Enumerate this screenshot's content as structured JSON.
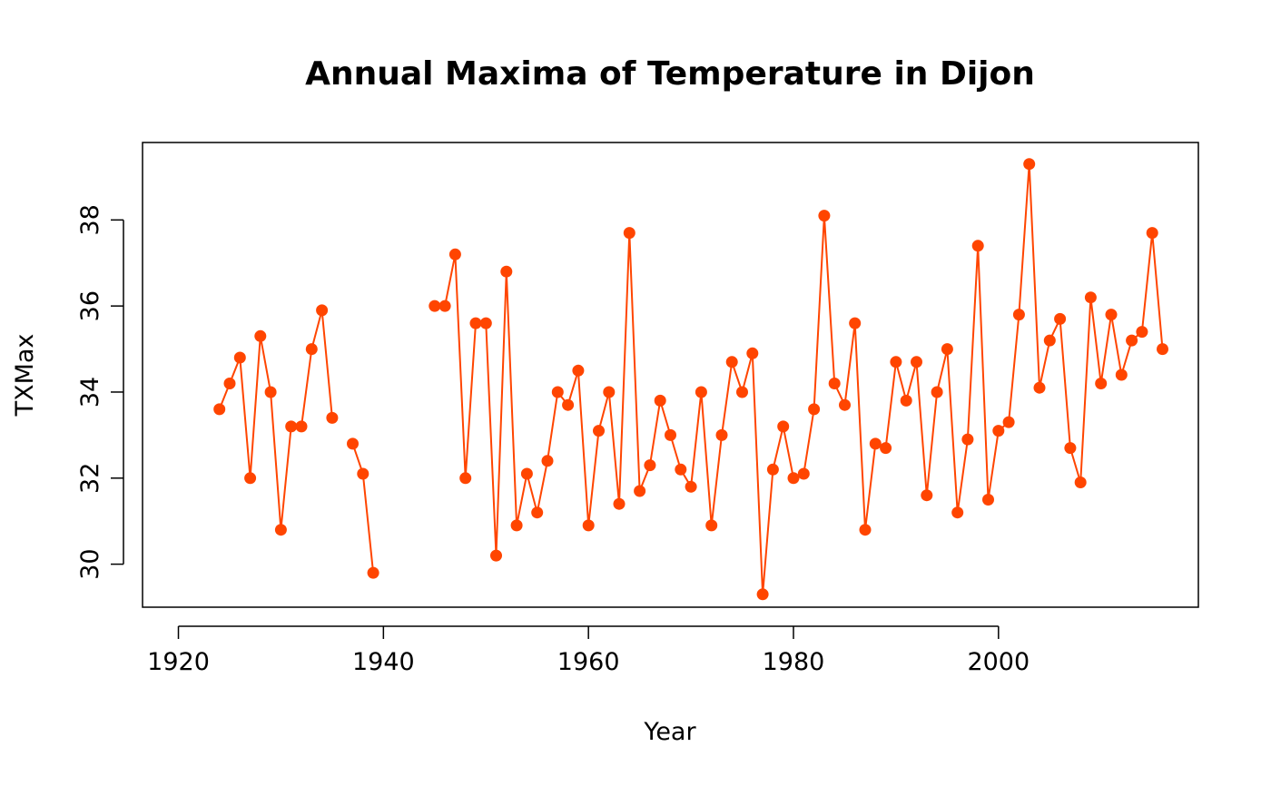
{
  "chart_data": {
    "type": "line",
    "title": "Annual Maxima of Temperature in Dijon",
    "xlabel": "Year",
    "ylabel": "TXMax",
    "xlim": [
      1916.5,
      2019.5
    ],
    "ylim": [
      29,
      39.8
    ],
    "x_ticks": [
      1920,
      1940,
      1960,
      1980,
      2000
    ],
    "y_ticks": [
      30,
      32,
      34,
      36,
      38
    ],
    "grid": false,
    "legend": "none",
    "marker": "filled-circle",
    "color": "#ff4500",
    "series": [
      {
        "points": [
          [
            1924,
            33.6
          ],
          [
            1925,
            34.2
          ],
          [
            1926,
            34.8
          ],
          [
            1927,
            32.0
          ],
          [
            1928,
            35.3
          ],
          [
            1929,
            34.0
          ],
          [
            1930,
            30.8
          ],
          [
            1931,
            33.2
          ],
          [
            1932,
            33.2
          ],
          [
            1933,
            35.0
          ],
          [
            1934,
            35.9
          ],
          [
            1935,
            33.4
          ],
          [
            1936,
            null
          ],
          [
            1937,
            32.8
          ],
          [
            1938,
            32.1
          ],
          [
            1939,
            29.8
          ],
          [
            1940,
            null
          ],
          [
            1941,
            null
          ],
          [
            1942,
            null
          ],
          [
            1943,
            null
          ],
          [
            1944,
            null
          ],
          [
            1945,
            36.0
          ],
          [
            1946,
            36.0
          ],
          [
            1947,
            37.2
          ],
          [
            1948,
            32.0
          ],
          [
            1949,
            35.6
          ],
          [
            1950,
            35.6
          ],
          [
            1951,
            30.2
          ],
          [
            1952,
            36.8
          ],
          [
            1953,
            30.9
          ],
          [
            1954,
            32.1
          ],
          [
            1955,
            31.2
          ],
          [
            1956,
            32.4
          ],
          [
            1957,
            34.0
          ],
          [
            1958,
            33.7
          ],
          [
            1959,
            34.5
          ],
          [
            1960,
            30.9
          ],
          [
            1961,
            33.1
          ],
          [
            1962,
            34.0
          ],
          [
            1963,
            31.4
          ],
          [
            1964,
            37.7
          ],
          [
            1965,
            31.7
          ],
          [
            1966,
            32.3
          ],
          [
            1967,
            33.8
          ],
          [
            1968,
            33.0
          ],
          [
            1969,
            32.2
          ],
          [
            1970,
            31.8
          ],
          [
            1971,
            34.0
          ],
          [
            1972,
            30.9
          ],
          [
            1973,
            33.0
          ],
          [
            1974,
            34.7
          ],
          [
            1975,
            34.0
          ],
          [
            1976,
            34.9
          ],
          [
            1977,
            29.3
          ],
          [
            1978,
            32.2
          ],
          [
            1979,
            33.2
          ],
          [
            1980,
            32.0
          ],
          [
            1981,
            32.1
          ],
          [
            1982,
            33.6
          ],
          [
            1983,
            38.1
          ],
          [
            1984,
            34.2
          ],
          [
            1985,
            33.7
          ],
          [
            1986,
            35.6
          ],
          [
            1987,
            30.8
          ],
          [
            1988,
            32.8
          ],
          [
            1989,
            32.7
          ],
          [
            1990,
            34.7
          ],
          [
            1991,
            33.8
          ],
          [
            1992,
            34.7
          ],
          [
            1993,
            31.6
          ],
          [
            1994,
            34.0
          ],
          [
            1995,
            35.0
          ],
          [
            1996,
            31.2
          ],
          [
            1997,
            32.9
          ],
          [
            1998,
            37.4
          ],
          [
            1999,
            31.5
          ],
          [
            2000,
            33.1
          ],
          [
            2001,
            33.3
          ],
          [
            2002,
            35.8
          ],
          [
            2003,
            39.3
          ],
          [
            2004,
            34.1
          ],
          [
            2005,
            35.2
          ],
          [
            2006,
            35.7
          ],
          [
            2007,
            32.7
          ],
          [
            2008,
            31.9
          ],
          [
            2009,
            36.2
          ],
          [
            2010,
            34.2
          ],
          [
            2011,
            35.8
          ],
          [
            2012,
            34.4
          ],
          [
            2013,
            35.2
          ],
          [
            2014,
            35.4
          ],
          [
            2015,
            37.7
          ],
          [
            2016,
            35.0
          ]
        ]
      }
    ]
  }
}
